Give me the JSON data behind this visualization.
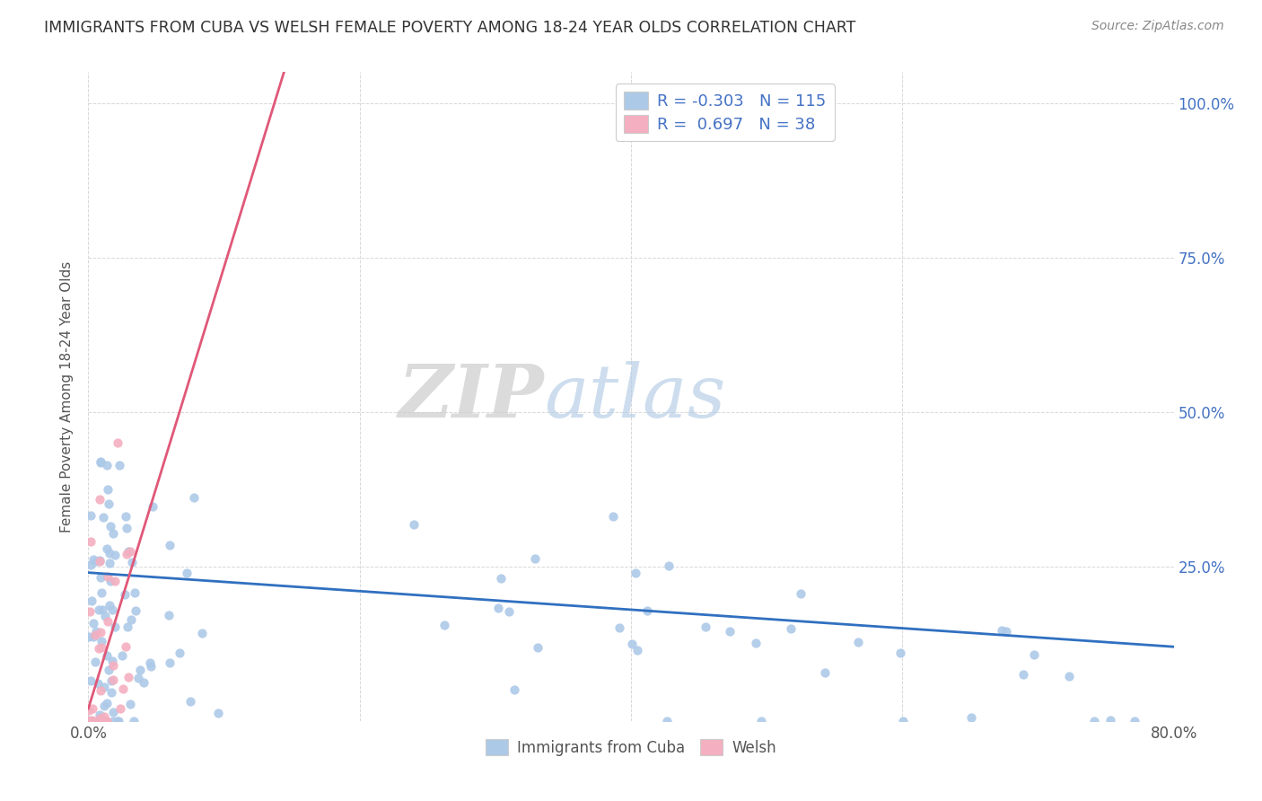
{
  "title": "IMMIGRANTS FROM CUBA VS WELSH FEMALE POVERTY AMONG 18-24 YEAR OLDS CORRELATION CHART",
  "source": "Source: ZipAtlas.com",
  "ylabel": "Female Poverty Among 18-24 Year Olds",
  "x_min": 0.0,
  "x_max": 0.8,
  "y_min": 0.0,
  "y_max": 1.05,
  "blue_R": -0.303,
  "blue_N": 115,
  "pink_R": 0.697,
  "pink_N": 38,
  "blue_color": "#adc9e8",
  "pink_color": "#f4afc0",
  "blue_line_color": "#3070c0",
  "pink_line_color": "#e05878",
  "watermark_zip": "ZIP",
  "watermark_atlas": "atlas",
  "background_color": "#ffffff",
  "grid_color": "#d8d8d8",
  "right_tick_color": "#4472c4",
  "title_color": "#333333",
  "source_color": "#888888",
  "legend_label_color": "#4472c4"
}
